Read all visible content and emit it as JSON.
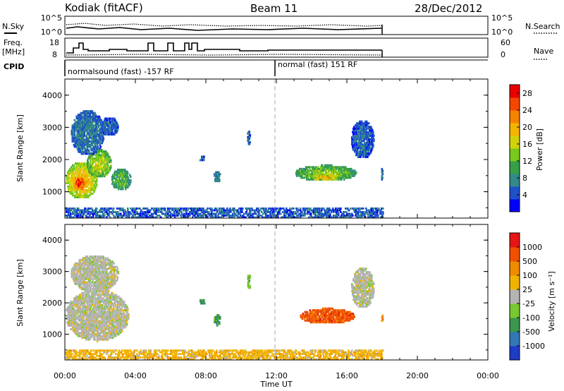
{
  "header": {
    "station": "Kodiak (fitACF)",
    "beam": "Beam 11",
    "date": "28/Dec/2012"
  },
  "summary": {
    "nsky_label": "N.Sky",
    "nsearch_label": "N.Search",
    "freq_label": "Freq.",
    "freq_unit": "[MHz]",
    "nave_label": "Nave",
    "cpid_label": "CPID",
    "noise_ticks_left": [
      "10^5",
      "10^0"
    ],
    "noise_ticks_right": [
      "10^5",
      "10^0"
    ],
    "freq_ticks": [
      "18",
      "8"
    ],
    "nave_ticks": [
      "60",
      "0"
    ]
  },
  "cpid": {
    "segments": [
      {
        "label": "normalsound (fast) -157 RF",
        "start_hour": 0,
        "end_hour": 12
      },
      {
        "label": "normal (fast) 151 RF",
        "start_hour": 12,
        "end_hour": 18
      }
    ]
  },
  "chart_data": [
    {
      "type": "heatmap",
      "panel": "power",
      "ylabel": "Slant Range [km]",
      "xlabel": "Time UT",
      "ylim": [
        180,
        4500
      ],
      "xlim": [
        0,
        24
      ],
      "yticks": [
        "1000",
        "2000",
        "3000",
        "4000"
      ],
      "xticks": [
        "00:00",
        "04:00",
        "08:00",
        "12:00",
        "16:00",
        "20:00",
        "00:00"
      ],
      "colorbar": {
        "label": "Power [dB]",
        "range": [
          0,
          30
        ],
        "ticks": [
          "4",
          "8",
          "12",
          "16",
          "20",
          "24",
          "28"
        ],
        "colors": [
          "#0000ff",
          "#1e50c8",
          "#328a8a",
          "#37a046",
          "#78c81e",
          "#d2d20a",
          "#f5b400",
          "#f58200",
          "#f54600",
          "#eb0000"
        ]
      },
      "data_end_hour": 18,
      "blobs": [
        {
          "t0": 0.0,
          "t1": 1.8,
          "r0": 750,
          "r1": 1900,
          "v": 20
        },
        {
          "t0": 0.4,
          "t1": 1.2,
          "r0": 1000,
          "r1": 1500,
          "v": 27
        },
        {
          "t0": 1.2,
          "t1": 2.6,
          "r0": 1400,
          "r1": 2300,
          "v": 16
        },
        {
          "t0": 2.6,
          "t1": 3.7,
          "r0": 1000,
          "r1": 1700,
          "v": 12
        },
        {
          "t0": 0.3,
          "t1": 2.2,
          "r0": 2100,
          "r1": 3500,
          "v": 7
        },
        {
          "t0": 2.0,
          "t1": 3.0,
          "r0": 2700,
          "r1": 3300,
          "v": 6
        },
        {
          "t0": 7.6,
          "t1": 7.9,
          "r0": 1900,
          "r1": 2100,
          "v": 6
        },
        {
          "t0": 8.4,
          "t1": 8.8,
          "r0": 1250,
          "r1": 1600,
          "v": 8
        },
        {
          "t0": 10.3,
          "t1": 10.5,
          "r0": 2400,
          "r1": 2900,
          "v": 6
        },
        {
          "t0": 13.0,
          "t1": 16.5,
          "r0": 1300,
          "r1": 1800,
          "v": 14
        },
        {
          "t0": 14.0,
          "t1": 15.5,
          "r0": 1300,
          "r1": 1550,
          "v": 20
        },
        {
          "t0": 16.2,
          "t1": 17.5,
          "r0": 2000,
          "r1": 3200,
          "v": 6
        },
        {
          "t0": 17.9,
          "t1": 18.0,
          "r0": 1300,
          "r1": 1700,
          "v": 8
        },
        {
          "t0": 0.0,
          "t1": 18.0,
          "r0": 180,
          "r1": 500,
          "v": 5
        }
      ]
    },
    {
      "type": "heatmap",
      "panel": "velocity",
      "ylabel": "Slant Range [km]",
      "xlabel": "Time UT",
      "ylim": [
        180,
        4500
      ],
      "xlim": [
        0,
        24
      ],
      "yticks": [
        "1000",
        "2000",
        "3000",
        "4000"
      ],
      "xticks": [
        "00:00",
        "04:00",
        "08:00",
        "12:00",
        "16:00",
        "20:00",
        "00:00"
      ],
      "colorbar": {
        "label": "Velocity [m s⁻¹]",
        "ticks": [
          "1000",
          "500",
          "100",
          "25",
          "-25",
          "-100",
          "-500",
          "-1000"
        ],
        "colors": [
          "#1e3cc8",
          "#3278b4",
          "#3c9650",
          "#78c832",
          "#b4b4b4",
          "#f0b400",
          "#f08c00",
          "#f05000",
          "#e61414"
        ]
      },
      "data_end_hour": 18,
      "blobs": [
        {
          "t0": 0.0,
          "t1": 3.6,
          "r0": 750,
          "r1": 2400,
          "c": 4
        },
        {
          "t0": 0.3,
          "t1": 3.0,
          "r0": 2300,
          "r1": 3500,
          "c": 4
        },
        {
          "t0": 7.6,
          "t1": 7.9,
          "r0": 1900,
          "r1": 2100,
          "c": 2
        },
        {
          "t0": 8.4,
          "t1": 8.8,
          "r0": 1250,
          "r1": 1600,
          "c": 2
        },
        {
          "t0": 10.3,
          "t1": 10.5,
          "r0": 2400,
          "r1": 2900,
          "c": 3
        },
        {
          "t0": 13.3,
          "t1": 16.4,
          "r0": 1300,
          "r1": 1800,
          "c": 7
        },
        {
          "t0": 16.2,
          "t1": 17.5,
          "r0": 1800,
          "r1": 3100,
          "c": 4
        },
        {
          "t0": 17.9,
          "t1": 18.0,
          "r0": 1350,
          "r1": 1600,
          "c": 6
        },
        {
          "t0": 0.0,
          "t1": 18.0,
          "r0": 180,
          "r1": 500,
          "c": 5
        }
      ]
    }
  ]
}
